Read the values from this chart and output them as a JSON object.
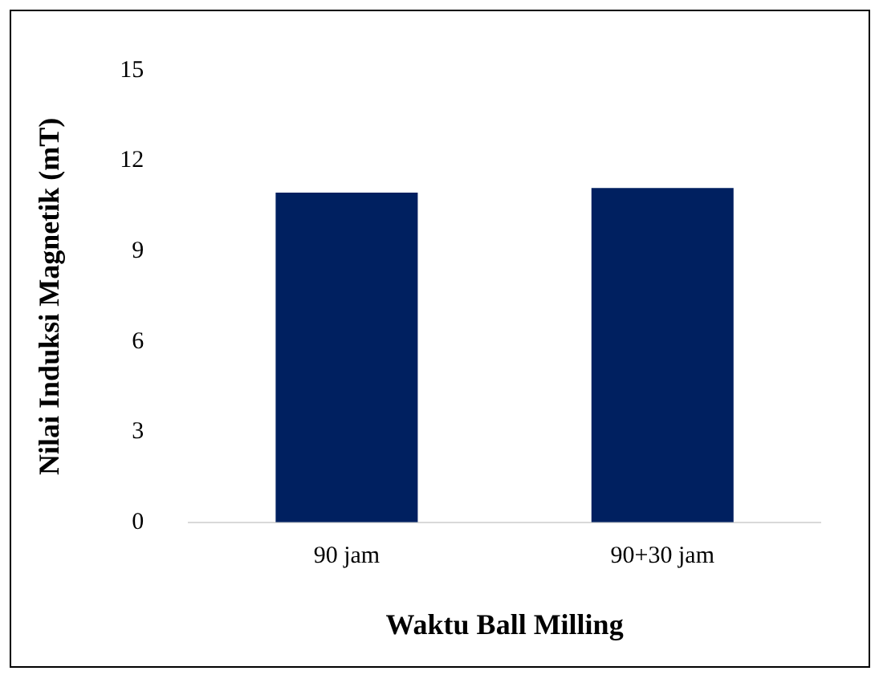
{
  "chart_data": {
    "type": "bar",
    "xlabel": "Waktu Ball Milling",
    "ylabel": "Nilai Induksi Magnetik (mT)",
    "categories": [
      "90 jam",
      "90+30 jam"
    ],
    "values": [
      10.95,
      11.1
    ],
    "color": "#002060",
    "ylim": [
      0,
      15
    ],
    "yticks": [
      0,
      3,
      6,
      9,
      12,
      15
    ],
    "grid": false,
    "legend": false
  }
}
